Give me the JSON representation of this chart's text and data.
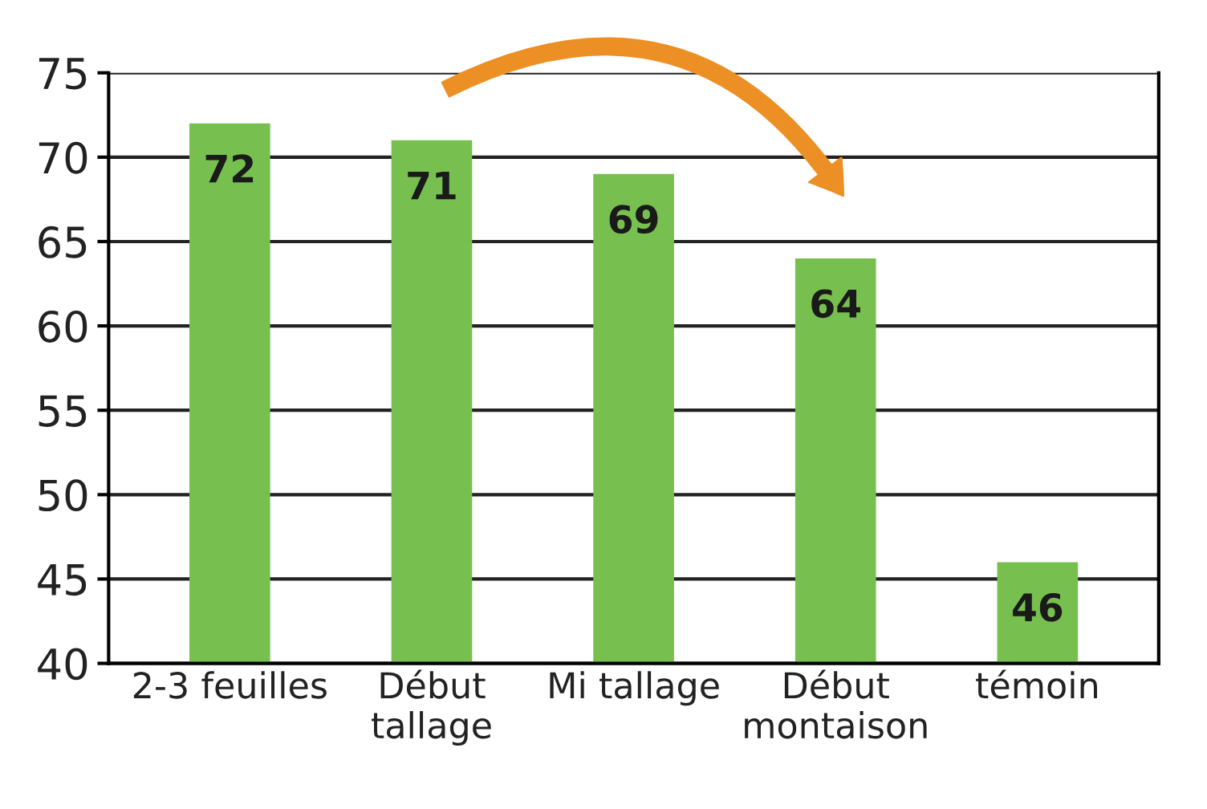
{
  "chart_data": {
    "type": "bar",
    "categories": [
      "2-3 feuilles",
      "Début\ntallage",
      "Mi tallage",
      "Début\nmontaison",
      "témoin"
    ],
    "values": [
      72,
      71,
      69,
      64,
      46
    ],
    "color": "#77c04f",
    "ylim": [
      40,
      75
    ],
    "yticks": [
      40,
      45,
      50,
      55,
      60,
      65,
      70,
      75
    ],
    "grid": "y",
    "data_labels": true
  }
}
